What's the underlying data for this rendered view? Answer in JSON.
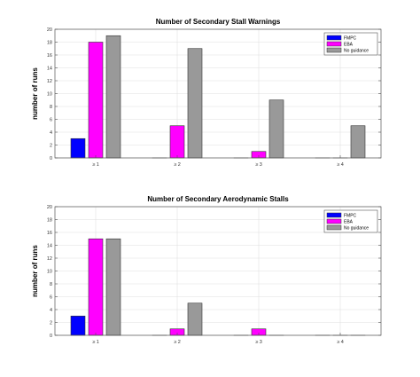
{
  "chart_data": [
    {
      "type": "bar",
      "title": "Number of Secondary Stall Warnings",
      "xlabel": "",
      "ylabel": "number of runs",
      "categories": [
        "≥ 1",
        "≥ 2",
        "≥ 3",
        "≥ 4"
      ],
      "series": [
        {
          "name": "FMPC",
          "color": "#0000ff",
          "values": [
            3,
            0,
            0,
            0
          ]
        },
        {
          "name": "EBA",
          "color": "#ff00ff",
          "values": [
            18,
            5,
            1,
            0
          ]
        },
        {
          "name": "No guidance",
          "color": "#999999",
          "values": [
            19,
            17,
            9,
            5
          ]
        }
      ],
      "ylim": [
        0,
        20
      ],
      "yticks": [
        0,
        2,
        4,
        6,
        8,
        10,
        12,
        14,
        16,
        18,
        20
      ],
      "grid": true,
      "legend": "top-right"
    },
    {
      "type": "bar",
      "title": "Number of Secondary Aerodynamic Stalls",
      "xlabel": "",
      "ylabel": "number of runs",
      "categories": [
        "≥ 1",
        "≥ 2",
        "≥ 3",
        "≥ 4"
      ],
      "series": [
        {
          "name": "FMPC",
          "color": "#0000ff",
          "values": [
            3,
            0,
            0,
            0
          ]
        },
        {
          "name": "EBA",
          "color": "#ff00ff",
          "values": [
            15,
            1,
            1,
            0
          ]
        },
        {
          "name": "No guidance",
          "color": "#999999",
          "values": [
            15,
            5,
            0,
            0
          ]
        }
      ],
      "ylim": [
        0,
        20
      ],
      "yticks": [
        0,
        2,
        4,
        6,
        8,
        10,
        12,
        14,
        16,
        18,
        20
      ],
      "grid": true,
      "legend": "top-right"
    }
  ]
}
